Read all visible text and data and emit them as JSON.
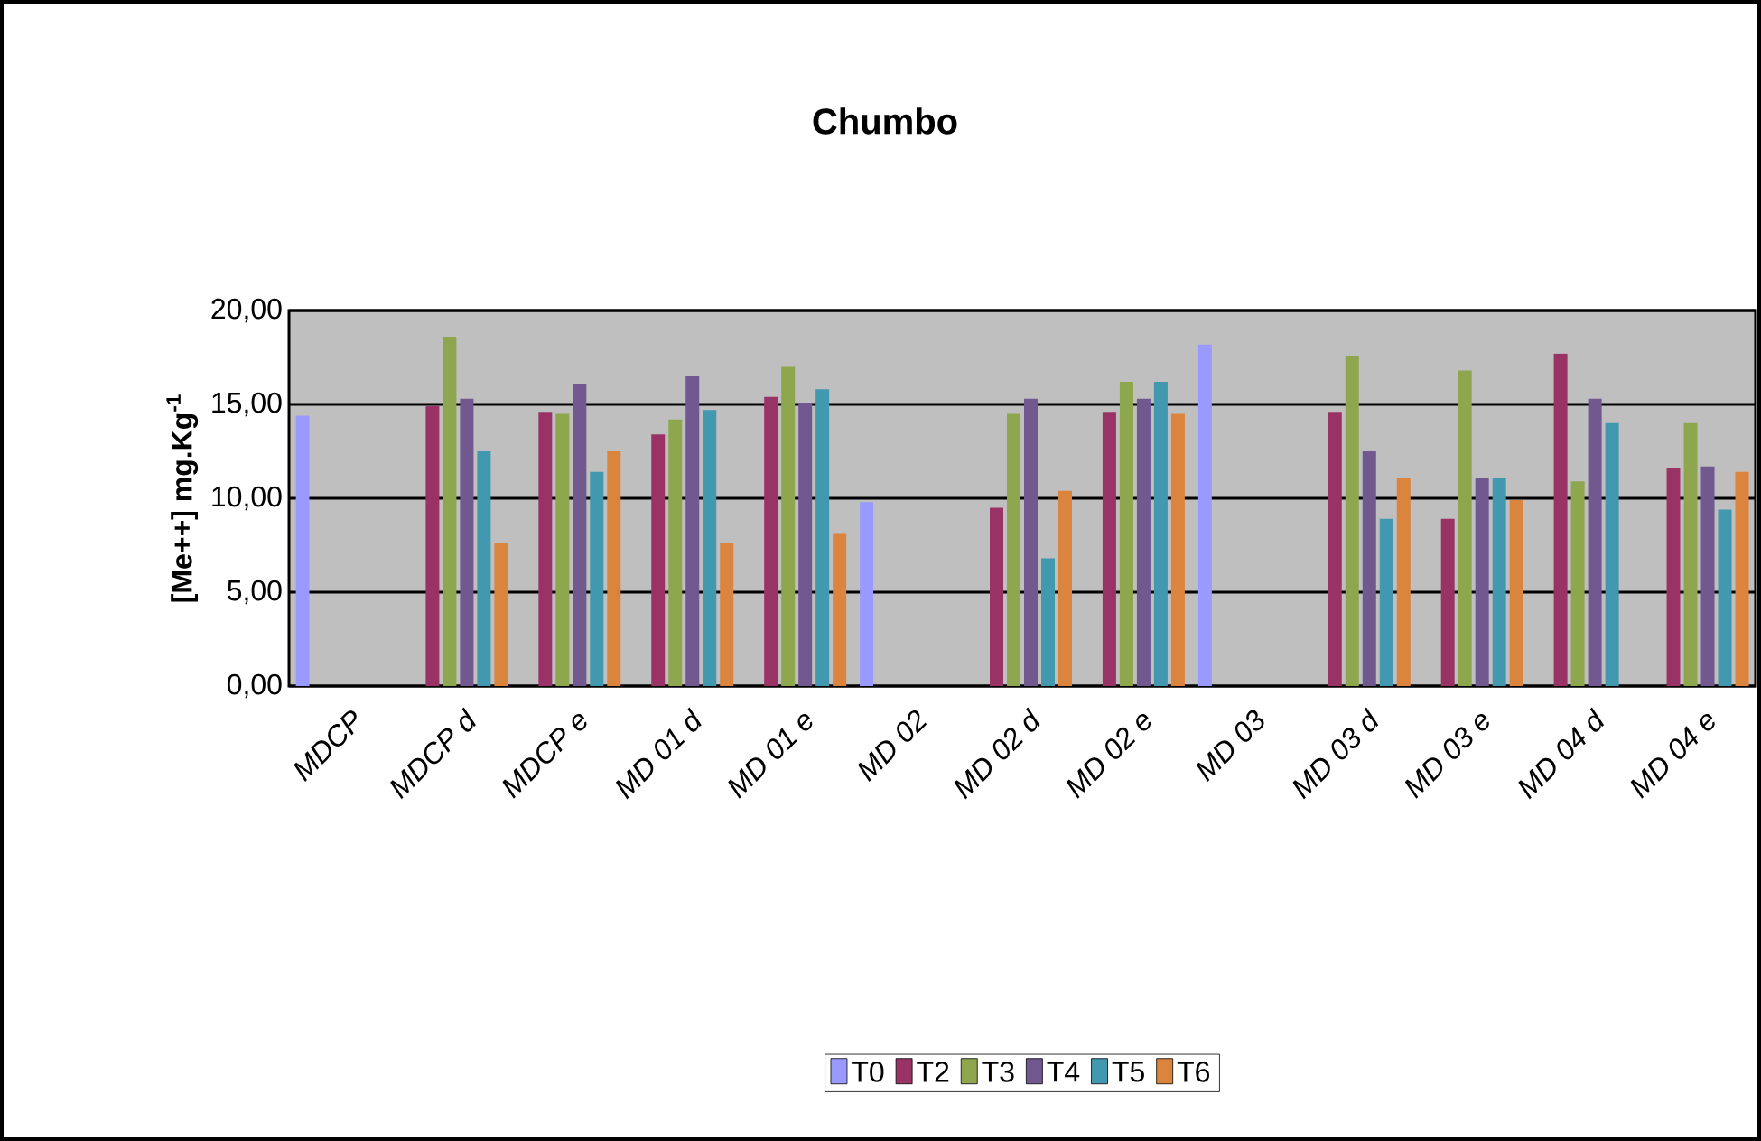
{
  "chart_data": {
    "type": "bar",
    "title": "Chumbo",
    "ylabel": "[Me++] mg.Kg$^{-1}$",
    "categories": [
      "MDCP",
      "MDCP d",
      "MDCP e",
      "MD 01 d",
      "MD 01 e",
      "MD 02",
      "MD 02 d",
      "MD 02 e",
      "MD 03",
      "MD 03 d",
      "MD 03 e",
      "MD 04 d",
      "MD 04 e"
    ],
    "series": [
      {
        "name": "T0",
        "color": "#9999ff",
        "values": [
          14.4,
          null,
          null,
          null,
          null,
          9.8,
          null,
          null,
          18.2,
          null,
          null,
          null,
          null
        ]
      },
      {
        "name": "T2",
        "color": "#993366",
        "values": [
          null,
          14.9,
          14.6,
          13.4,
          15.4,
          null,
          9.5,
          14.6,
          null,
          14.6,
          8.9,
          17.7,
          11.6
        ]
      },
      {
        "name": "T3",
        "color": "#8ea64e",
        "values": [
          null,
          18.6,
          14.5,
          14.2,
          17.0,
          null,
          14.5,
          16.2,
          null,
          17.6,
          16.8,
          10.9,
          14.0
        ]
      },
      {
        "name": "T4",
        "color": "#71588f",
        "values": [
          null,
          15.3,
          16.1,
          16.5,
          15.1,
          null,
          15.3,
          15.3,
          null,
          12.5,
          11.1,
          15.3,
          11.7
        ]
      },
      {
        "name": "T5",
        "color": "#4198af",
        "values": [
          null,
          12.5,
          11.4,
          14.7,
          15.8,
          null,
          6.8,
          16.2,
          null,
          8.9,
          11.1,
          14.0,
          9.4
        ]
      },
      {
        "name": "T6",
        "color": "#db843d",
        "values": [
          null,
          7.6,
          12.5,
          7.6,
          8.1,
          null,
          10.4,
          14.5,
          null,
          11.1,
          9.9,
          null,
          11.4
        ]
      }
    ],
    "ylim": [
      0,
      20
    ],
    "yticks": [
      {
        "value": 0,
        "label": "0,00"
      },
      {
        "value": 5,
        "label": "5,00"
      },
      {
        "value": 10,
        "label": "10,00"
      },
      {
        "value": 15,
        "label": "15,00"
      },
      {
        "value": 20,
        "label": "20,00"
      }
    ],
    "grid": "y",
    "legend": "bottom"
  }
}
